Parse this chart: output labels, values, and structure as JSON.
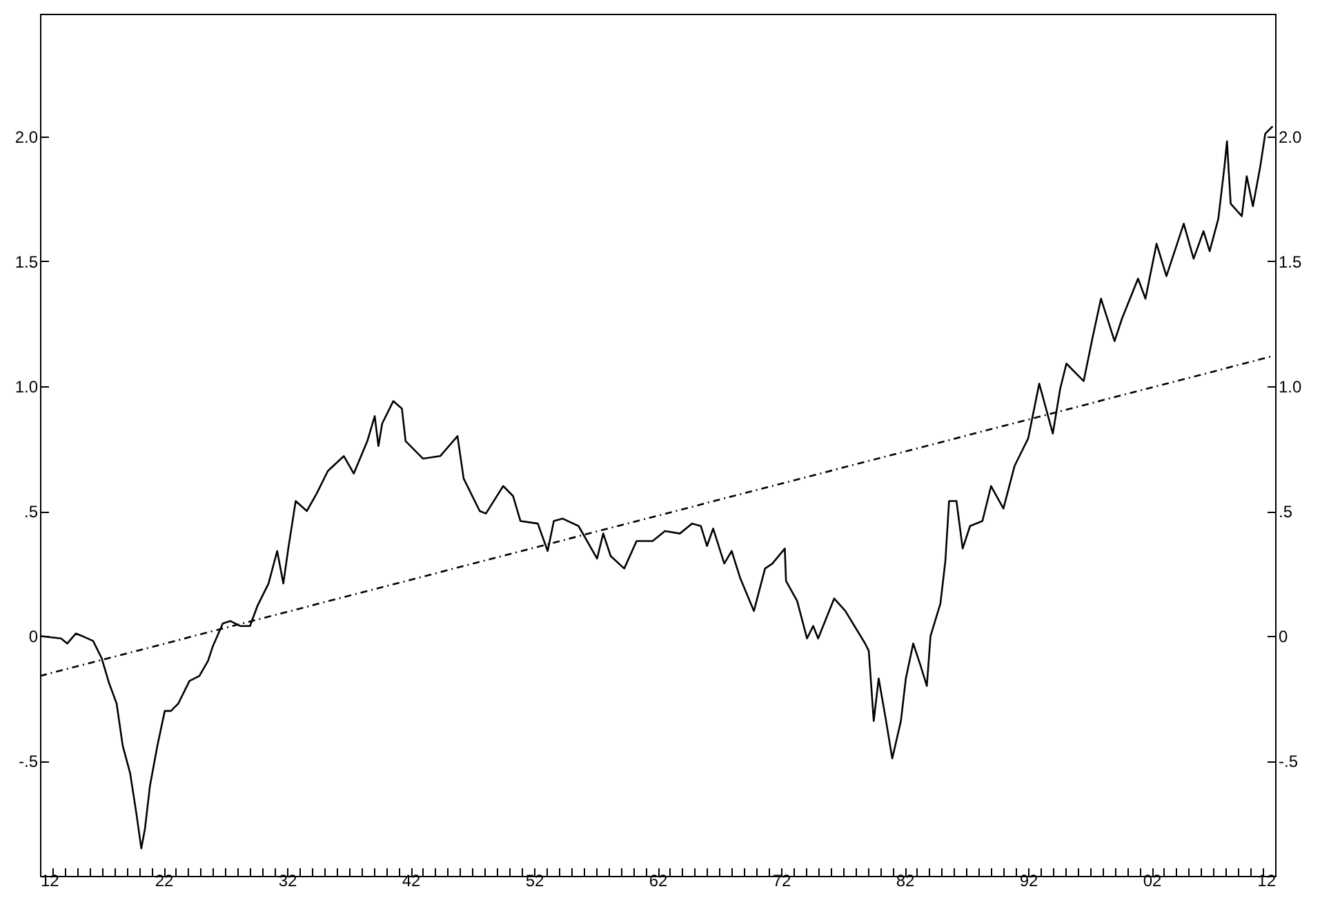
{
  "chart_data": {
    "type": "line",
    "grid": false,
    "xlim": [
      1912,
      2012
    ],
    "xticks": [
      {
        "value": 1912,
        "label": "12"
      },
      {
        "value": 1913,
        "label": null
      },
      {
        "value": 1914,
        "label": null
      },
      {
        "value": 1915,
        "label": null
      },
      {
        "value": 1916,
        "label": null
      },
      {
        "value": 1917,
        "label": null
      },
      {
        "value": 1918,
        "label": null
      },
      {
        "value": 1919,
        "label": null
      },
      {
        "value": 1920,
        "label": null
      },
      {
        "value": 1921,
        "label": null
      },
      {
        "value": 1922,
        "label": "22"
      },
      {
        "value": 1923,
        "label": null
      },
      {
        "value": 1924,
        "label": null
      },
      {
        "value": 1925,
        "label": null
      },
      {
        "value": 1926,
        "label": null
      },
      {
        "value": 1927,
        "label": null
      },
      {
        "value": 1928,
        "label": null
      },
      {
        "value": 1929,
        "label": null
      },
      {
        "value": 1930,
        "label": null
      },
      {
        "value": 1931,
        "label": null
      },
      {
        "value": 1932,
        "label": "32"
      },
      {
        "value": 1933,
        "label": null
      },
      {
        "value": 1934,
        "label": null
      },
      {
        "value": 1935,
        "label": null
      },
      {
        "value": 1936,
        "label": null
      },
      {
        "value": 1937,
        "label": null
      },
      {
        "value": 1938,
        "label": null
      },
      {
        "value": 1939,
        "label": null
      },
      {
        "value": 1940,
        "label": null
      },
      {
        "value": 1941,
        "label": null
      },
      {
        "value": 1942,
        "label": "42"
      },
      {
        "value": 1943,
        "label": null
      },
      {
        "value": 1944,
        "label": null
      },
      {
        "value": 1945,
        "label": null
      },
      {
        "value": 1946,
        "label": null
      },
      {
        "value": 1947,
        "label": null
      },
      {
        "value": 1948,
        "label": null
      },
      {
        "value": 1949,
        "label": null
      },
      {
        "value": 1950,
        "label": null
      },
      {
        "value": 1951,
        "label": null
      },
      {
        "value": 1952,
        "label": "52"
      },
      {
        "value": 1953,
        "label": null
      },
      {
        "value": 1954,
        "label": null
      },
      {
        "value": 1955,
        "label": null
      },
      {
        "value": 1956,
        "label": null
      },
      {
        "value": 1957,
        "label": null
      },
      {
        "value": 1958,
        "label": null
      },
      {
        "value": 1959,
        "label": null
      },
      {
        "value": 1960,
        "label": null
      },
      {
        "value": 1961,
        "label": null
      },
      {
        "value": 1962,
        "label": "62"
      },
      {
        "value": 1963,
        "label": null
      },
      {
        "value": 1964,
        "label": null
      },
      {
        "value": 1965,
        "label": null
      },
      {
        "value": 1966,
        "label": null
      },
      {
        "value": 1967,
        "label": null
      },
      {
        "value": 1968,
        "label": null
      },
      {
        "value": 1969,
        "label": null
      },
      {
        "value": 1970,
        "label": null
      },
      {
        "value": 1971,
        "label": null
      },
      {
        "value": 1972,
        "label": "72"
      },
      {
        "value": 1973,
        "label": null
      },
      {
        "value": 1974,
        "label": null
      },
      {
        "value": 1975,
        "label": null
      },
      {
        "value": 1976,
        "label": null
      },
      {
        "value": 1977,
        "label": null
      },
      {
        "value": 1978,
        "label": null
      },
      {
        "value": 1979,
        "label": null
      },
      {
        "value": 1980,
        "label": null
      },
      {
        "value": 1981,
        "label": null
      },
      {
        "value": 1982,
        "label": "82"
      },
      {
        "value": 1983,
        "label": null
      },
      {
        "value": 1984,
        "label": null
      },
      {
        "value": 1985,
        "label": null
      },
      {
        "value": 1986,
        "label": null
      },
      {
        "value": 1987,
        "label": null
      },
      {
        "value": 1988,
        "label": null
      },
      {
        "value": 1989,
        "label": null
      },
      {
        "value": 1990,
        "label": null
      },
      {
        "value": 1991,
        "label": null
      },
      {
        "value": 1992,
        "label": "92"
      },
      {
        "value": 1993,
        "label": null
      },
      {
        "value": 1994,
        "label": null
      },
      {
        "value": 1995,
        "label": null
      },
      {
        "value": 1996,
        "label": null
      },
      {
        "value": 1997,
        "label": null
      },
      {
        "value": 1998,
        "label": null
      },
      {
        "value": 1999,
        "label": null
      },
      {
        "value": 2000,
        "label": null
      },
      {
        "value": 2001,
        "label": null
      },
      {
        "value": 2002,
        "label": "02"
      },
      {
        "value": 2003,
        "label": null
      },
      {
        "value": 2004,
        "label": null
      },
      {
        "value": 2005,
        "label": null
      },
      {
        "value": 2006,
        "label": null
      },
      {
        "value": 2007,
        "label": null
      },
      {
        "value": 2008,
        "label": null
      },
      {
        "value": 2009,
        "label": null
      },
      {
        "value": 2010,
        "label": null
      },
      {
        "value": 2011,
        "label": null
      },
      {
        "value": 2012,
        "label": "12"
      }
    ],
    "ylim": [
      -0.96,
      2.49
    ],
    "yticks": [
      {
        "value": -0.5,
        "label": "-.5"
      },
      0,
      {
        "value": 0.5,
        "label": ".5"
      },
      {
        "value": 1,
        "label": "1.0"
      },
      {
        "value": 1.5,
        "label": "1.5"
      },
      {
        "value": 2,
        "label": "2.0"
      }
    ],
    "y2lim": [
      -0.96,
      2.49
    ],
    "y2ticks": [
      {
        "value": -0.5,
        "label": "-.5"
      },
      0,
      {
        "value": 0.5,
        "label": ".5"
      },
      {
        "value": 1,
        "label": "1.0"
      },
      {
        "value": 1.5,
        "label": "1.5"
      },
      {
        "value": 2,
        "label": "2.0"
      }
    ],
    "series": [
      {
        "color": "#000000",
        "line_style": "solid",
        "x": [
          1912.0,
          1913.7,
          1914.2,
          1914.9,
          1915.4,
          1916.3,
          1917.0,
          1917.6,
          1918.2,
          1918.7,
          1919.3,
          1919.8,
          1920.2,
          1920.5,
          1920.9,
          1921.5,
          1922.1,
          1922.6,
          1923.2,
          1924.1,
          1924.9,
          1925.6,
          1926.0,
          1926.8,
          1927.4,
          1928.2,
          1929.0,
          1929.6,
          1930.5,
          1931.2,
          1931.7,
          1932.1,
          1932.7,
          1933.6,
          1934.4,
          1935.3,
          1936.6,
          1937.4,
          1938.5,
          1939.1,
          1939.4,
          1939.7,
          1940.6,
          1941.3,
          1941.6,
          1943.0,
          1944.4,
          1945.8,
          1946.3,
          1947.6,
          1948.1,
          1949.5,
          1950.3,
          1950.9,
          1952.3,
          1953.1,
          1953.6,
          1954.3,
          1955.6,
          1957.1,
          1957.6,
          1958.2,
          1959.3,
          1960.3,
          1961.6,
          1962.6,
          1963.8,
          1964.8,
          1965.5,
          1966.0,
          1966.5,
          1967.4,
          1968.0,
          1968.7,
          1969.8,
          1970.7,
          1971.3,
          1972.3,
          1972.4,
          1973.3,
          1974.1,
          1974.6,
          1975.0,
          1976.3,
          1977.2,
          1978.8,
          1979.1,
          1979.5,
          1979.9,
          1980.5,
          1981.0,
          1981.7,
          1982.1,
          1982.7,
          1983.3,
          1983.8,
          1984.1,
          1984.9,
          1985.3,
          1985.6,
          1986.2,
          1986.7,
          1987.3,
          1988.3,
          1989.0,
          1990.0,
          1990.9,
          1992.0,
          1992.9,
          1994.0,
          1994.6,
          1995.1,
          1996.5,
          1997.2,
          1997.9,
          1999.0,
          1999.6,
          2000.9,
          2001.5,
          2002.4,
          2003.2,
          2004.6,
          2005.4,
          2006.2,
          2006.7,
          2007.4,
          2007.9,
          2008.1,
          2008.4,
          2009.3,
          2009.7,
          2010.2,
          2010.8,
          2011.2,
          2011.8
        ],
        "values": [
          0.0,
          -0.01,
          -0.03,
          0.01,
          0.0,
          -0.02,
          -0.09,
          -0.19,
          -0.27,
          -0.44,
          -0.55,
          -0.71,
          -0.85,
          -0.77,
          -0.6,
          -0.44,
          -0.3,
          -0.3,
          -0.27,
          -0.18,
          -0.16,
          -0.1,
          -0.04,
          0.05,
          0.06,
          0.04,
          0.04,
          0.12,
          0.21,
          0.34,
          0.21,
          0.35,
          0.54,
          0.5,
          0.57,
          0.66,
          0.72,
          0.65,
          0.78,
          0.88,
          0.76,
          0.85,
          0.94,
          0.91,
          0.78,
          0.71,
          0.72,
          0.8,
          0.63,
          0.5,
          0.49,
          0.6,
          0.56,
          0.46,
          0.45,
          0.34,
          0.46,
          0.47,
          0.44,
          0.31,
          0.41,
          0.32,
          0.27,
          0.38,
          0.38,
          0.42,
          0.41,
          0.45,
          0.44,
          0.36,
          0.43,
          0.29,
          0.34,
          0.23,
          0.1,
          0.27,
          0.29,
          0.35,
          0.22,
          0.14,
          -0.01,
          0.04,
          -0.01,
          0.15,
          0.1,
          -0.03,
          -0.06,
          -0.34,
          -0.17,
          -0.34,
          -0.49,
          -0.34,
          -0.17,
          -0.03,
          -0.12,
          -0.2,
          0.0,
          0.13,
          0.3,
          0.54,
          0.54,
          0.35,
          0.44,
          0.46,
          0.6,
          0.51,
          0.68,
          0.79,
          1.01,
          0.81,
          0.99,
          1.09,
          1.02,
          1.19,
          1.35,
          1.18,
          1.27,
          1.43,
          1.35,
          1.57,
          1.44,
          1.65,
          1.51,
          1.62,
          1.54,
          1.67,
          1.88,
          1.98,
          1.73,
          1.68,
          1.84,
          1.72,
          1.88,
          2.01,
          2.04
        ]
      },
      {
        "color": "#000000",
        "line_style": "dashed",
        "x": [
          1912.0,
          2011.8
        ],
        "values": [
          -0.16,
          1.12
        ]
      }
    ]
  }
}
